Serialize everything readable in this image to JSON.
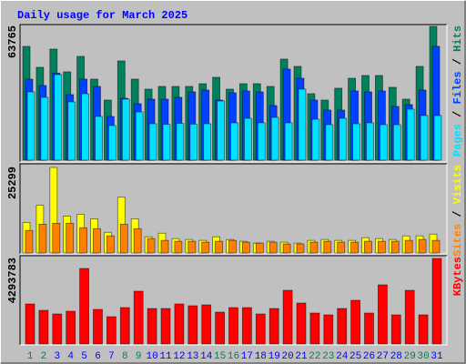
{
  "chart_data": [
    {
      "type": "bar",
      "title": "Daily usage for March 2025",
      "categories": [
        "1",
        "2",
        "3",
        "4",
        "5",
        "6",
        "7",
        "8",
        "9",
        "10",
        "11",
        "12",
        "13",
        "14",
        "15",
        "16",
        "17",
        "18",
        "19",
        "20",
        "21",
        "22",
        "23",
        "24",
        "25",
        "26",
        "27",
        "28",
        "29",
        "30",
        "31"
      ],
      "category_colors": [
        "#00805c",
        "#00805c",
        "#0000ff",
        "#0000ff",
        "#0000ff",
        "#0000ff",
        "#0000ff",
        "#00805c",
        "#00805c",
        "#0000ff",
        "#0000ff",
        "#0000ff",
        "#0000ff",
        "#0000ff",
        "#00805c",
        "#00805c",
        "#0000ff",
        "#0000ff",
        "#0000ff",
        "#0000ff",
        "#0000ff",
        "#00805c",
        "#00805c",
        "#0000ff",
        "#0000ff",
        "#0000ff",
        "#0000ff",
        "#0000ff",
        "#00805c",
        "#00805c",
        "#0000ff"
      ],
      "legend_separator": " / ",
      "ylim": [
        0,
        63765
      ],
      "yticks": [
        63765
      ],
      "series": [
        {
          "name": "Hits",
          "color": "#00805c",
          "values": [
            54250,
            44268,
            52948,
            42098,
            49476,
            38626,
            28644,
            47306,
            38626,
            33852,
            35154,
            35154,
            35154,
            36456,
            39494,
            33852,
            36456,
            36456,
            35154,
            48174,
            44702,
            31682,
            28644,
            34286,
            39060,
            40362,
            40362,
            34720,
            29078,
            44702,
            63765
          ]
        },
        {
          "name": "Files",
          "color": "#0040ff",
          "values": [
            38626,
            35588,
            41500,
            31248,
            38626,
            35154,
            20832,
            29512,
            26908,
            29078,
            29078,
            29946,
            32550,
            33418,
            28644,
            32116,
            32984,
            32550,
            26040,
            43400,
            39060,
            28644,
            23870,
            23870,
            32984,
            32550,
            32984,
            25606,
            26474,
            33418,
            54250
          ]
        },
        {
          "name": "Pages",
          "color": "#00e0ff",
          "values": [
            32550,
            29946,
            40796,
            27776,
            31682,
            20832,
            16492,
            29078,
            23002,
            17360,
            17100,
            17500,
            17200,
            17360,
            28210,
            17794,
            19964,
            17794,
            20398,
            17794,
            33852,
            19530,
            16926,
            19964,
            17360,
            17794,
            16926,
            16926,
            24304,
            21266,
            21266
          ]
        }
      ]
    },
    {
      "type": "bar",
      "ylim": [
        0,
        25299
      ],
      "yticks": [
        25299
      ],
      "legend_separator": " / ",
      "series": [
        {
          "name": "Visits",
          "color": "#ffff00",
          "values": [
            9044,
            14098,
            25299,
            10906,
            11438,
            10108,
            6118,
            16492,
            10108,
            4788,
            5852,
            4256,
            3990,
            3724,
            4788,
            3990,
            3458,
            2926,
            3458,
            3192,
            2926,
            3724,
            3990,
            3724,
            3724,
            4522,
            4256,
            3990,
            5054,
            5054,
            5586
          ]
        },
        {
          "name": "Sites",
          "color": "#ff8000",
          "values": [
            6650,
            8512,
            8778,
            8778,
            7448,
            7182,
            5054,
            8512,
            7182,
            4256,
            3724,
            3458,
            3458,
            3192,
            3458,
            3724,
            3192,
            2926,
            3192,
            2660,
            2660,
            3192,
            3458,
            3192,
            3192,
            3458,
            3458,
            3458,
            3724,
            3990,
            3724
          ]
        }
      ]
    },
    {
      "type": "bar",
      "ylim": [
        0,
        4293783
      ],
      "yticks": [
        4293783
      ],
      "series": [
        {
          "name": "KBytes",
          "color": "#ff0000",
          "values": [
            2009876,
            1690123,
            1507407,
            1644444,
            3791357,
            1735802,
            1370370,
            1827160,
            2649382,
            1781481,
            1781481,
            2009876,
            1918518,
            1964197,
            1598765,
            1827160,
            1827160,
            1507407,
            1781481,
            2695061,
            2055555,
            1553086,
            1461728,
            1781481,
            2192592,
            1553086,
            2969135,
            1461728,
            2695061,
            1461728,
            4293783
          ]
        }
      ]
    }
  ]
}
